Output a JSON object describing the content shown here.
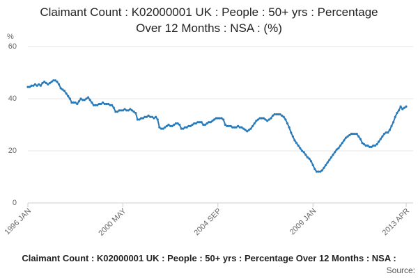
{
  "chart_data": {
    "type": "line",
    "title": "Claimant Count : K02000001 UK : People : 50+ yrs : Percentage Over 12 Months : NSA : (%)",
    "y_label": "%",
    "footer": "Claimant Count : K02000001 UK : People : 50+ yrs : Percentage Over 12 Months : NSA :",
    "source": "Source:",
    "categories": [
      "1996 JAN",
      null,
      null,
      null,
      null,
      null,
      null,
      null,
      null,
      null,
      null,
      null,
      null,
      null,
      null,
      null,
      null,
      null,
      null,
      null,
      null,
      null,
      null,
      null,
      null,
      null,
      null,
      null,
      null,
      null,
      null,
      null,
      null,
      null,
      null,
      null,
      null,
      null,
      null,
      null,
      null,
      null,
      null,
      null,
      null,
      null,
      null,
      null,
      null,
      null,
      null,
      null,
      "2000 MAY",
      null,
      null,
      null,
      null,
      null,
      null,
      null,
      null,
      null,
      null,
      null,
      null,
      null,
      null,
      null,
      null,
      null,
      null,
      null,
      null,
      null,
      null,
      null,
      null,
      null,
      null,
      null,
      null,
      null,
      null,
      null,
      null,
      null,
      null,
      null,
      null,
      null,
      null,
      null,
      null,
      null,
      null,
      null,
      null,
      null,
      null,
      null,
      null,
      null,
      null,
      null,
      "2004 SEP",
      null,
      null,
      null,
      null,
      null,
      null,
      null,
      null,
      null,
      null,
      null,
      null,
      null,
      null,
      null,
      null,
      null,
      null,
      null,
      null,
      null,
      null,
      null,
      null,
      null,
      null,
      null,
      null,
      null,
      null,
      null,
      null,
      null,
      null,
      null,
      null,
      null,
      null,
      null,
      null,
      null,
      null,
      null,
      null,
      null,
      null,
      null,
      null,
      null,
      null,
      null,
      "2009 JAN",
      null,
      null,
      null,
      null,
      null,
      null,
      null,
      null,
      null,
      null,
      null,
      null,
      null,
      null,
      null,
      null,
      null,
      null,
      null,
      null,
      null,
      null,
      null,
      null,
      null,
      null,
      null,
      null,
      null,
      null,
      null,
      null,
      null,
      null,
      null,
      null,
      null,
      null,
      null,
      null,
      null,
      null,
      null,
      null,
      null,
      null,
      null,
      null,
      null,
      null,
      "2013 APR"
    ],
    "series": [
      {
        "color": "#2a7ab8",
        "values": [
          44.5,
          44.5,
          45,
          45,
          45.5,
          45,
          45.5,
          45,
          46,
          46.5,
          46,
          45.5,
          46,
          46.5,
          47,
          47,
          46.5,
          45.5,
          44,
          43.5,
          43,
          42,
          41,
          40,
          38.5,
          38.5,
          38.5,
          38,
          39,
          40,
          39.5,
          39.5,
          40,
          40.5,
          39.5,
          38.5,
          37.5,
          37.5,
          37.5,
          38,
          38,
          38.5,
          38,
          38,
          38,
          37.5,
          37.5,
          36.5,
          35,
          35,
          35.5,
          35.5,
          35.5,
          36,
          35.5,
          35.5,
          36,
          35.5,
          35,
          34.5,
          32,
          32,
          32.5,
          32.5,
          33,
          33,
          33.5,
          33,
          33,
          32.5,
          33,
          32,
          29,
          28.5,
          28.5,
          29,
          29.5,
          30,
          29.5,
          29.5,
          30,
          30.5,
          30.5,
          30,
          28.5,
          28.5,
          29,
          29,
          29.5,
          29.5,
          30,
          30.5,
          30.5,
          31,
          31,
          31,
          30,
          30,
          30.5,
          31,
          31,
          31.5,
          32,
          32.5,
          32.5,
          32.5,
          32.5,
          32,
          30,
          29.5,
          29.5,
          29.5,
          29,
          29,
          29,
          29.5,
          29,
          29,
          28.5,
          28,
          27.5,
          28,
          28.5,
          29.5,
          30.5,
          31.5,
          32,
          32.5,
          32.5,
          32.5,
          32,
          31.5,
          32,
          32.5,
          33.5,
          34,
          34,
          34,
          34,
          33.5,
          33,
          32,
          30.5,
          29,
          27,
          25.5,
          24,
          23,
          22,
          21,
          20,
          19.5,
          18.5,
          17.5,
          17,
          16,
          14.5,
          13,
          12,
          12,
          12,
          12.5,
          13.5,
          14.5,
          15.5,
          16.5,
          17.5,
          18.5,
          19.5,
          20.5,
          21,
          22,
          23,
          24,
          25,
          25.5,
          26,
          26.5,
          26.5,
          26.5,
          26.5,
          25.5,
          24.5,
          23,
          22.5,
          22,
          22,
          21.5,
          21.5,
          22,
          22,
          22.5,
          23.5,
          24.5,
          25.5,
          26.5,
          27,
          27,
          28,
          29.5,
          31,
          33,
          34.5,
          35.5,
          37,
          36,
          36.5,
          37
        ]
      }
    ],
    "ylim": [
      0,
      60
    ],
    "yticks": [
      0,
      20,
      40,
      60
    ],
    "grid": true
  }
}
